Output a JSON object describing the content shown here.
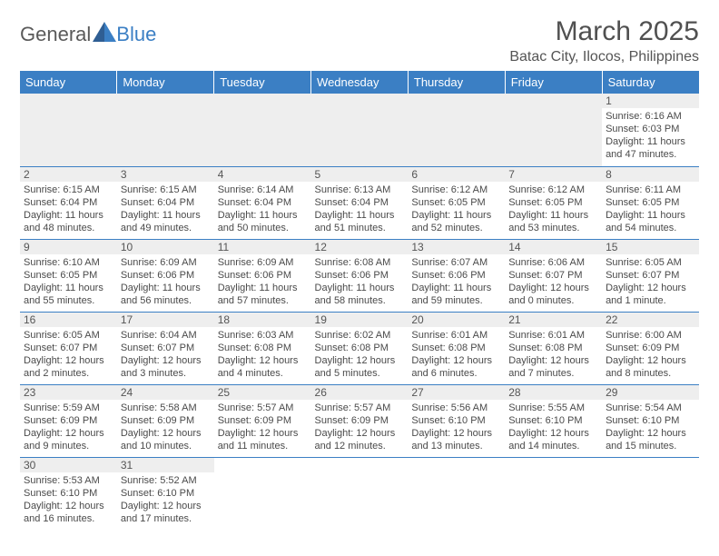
{
  "logo": {
    "text1": "General",
    "text2": "Blue",
    "triangle_color": "#3b7fc4"
  },
  "title": "March 2025",
  "location": "Batac City, Ilocos, Philippines",
  "colors": {
    "header_bg": "#3b7fc4",
    "header_text": "#ffffff",
    "daynum_bg": "#eeeeee",
    "border": "#3b7fc4",
    "body_text": "#4a4a4a"
  },
  "day_headers": [
    "Sunday",
    "Monday",
    "Tuesday",
    "Wednesday",
    "Thursday",
    "Friday",
    "Saturday"
  ],
  "weeks": [
    [
      null,
      null,
      null,
      null,
      null,
      null,
      {
        "num": "1",
        "sunrise": "Sunrise: 6:16 AM",
        "sunset": "Sunset: 6:03 PM",
        "daylight": "Daylight: 11 hours and 47 minutes."
      }
    ],
    [
      {
        "num": "2",
        "sunrise": "Sunrise: 6:15 AM",
        "sunset": "Sunset: 6:04 PM",
        "daylight": "Daylight: 11 hours and 48 minutes."
      },
      {
        "num": "3",
        "sunrise": "Sunrise: 6:15 AM",
        "sunset": "Sunset: 6:04 PM",
        "daylight": "Daylight: 11 hours and 49 minutes."
      },
      {
        "num": "4",
        "sunrise": "Sunrise: 6:14 AM",
        "sunset": "Sunset: 6:04 PM",
        "daylight": "Daylight: 11 hours and 50 minutes."
      },
      {
        "num": "5",
        "sunrise": "Sunrise: 6:13 AM",
        "sunset": "Sunset: 6:04 PM",
        "daylight": "Daylight: 11 hours and 51 minutes."
      },
      {
        "num": "6",
        "sunrise": "Sunrise: 6:12 AM",
        "sunset": "Sunset: 6:05 PM",
        "daylight": "Daylight: 11 hours and 52 minutes."
      },
      {
        "num": "7",
        "sunrise": "Sunrise: 6:12 AM",
        "sunset": "Sunset: 6:05 PM",
        "daylight": "Daylight: 11 hours and 53 minutes."
      },
      {
        "num": "8",
        "sunrise": "Sunrise: 6:11 AM",
        "sunset": "Sunset: 6:05 PM",
        "daylight": "Daylight: 11 hours and 54 minutes."
      }
    ],
    [
      {
        "num": "9",
        "sunrise": "Sunrise: 6:10 AM",
        "sunset": "Sunset: 6:05 PM",
        "daylight": "Daylight: 11 hours and 55 minutes."
      },
      {
        "num": "10",
        "sunrise": "Sunrise: 6:09 AM",
        "sunset": "Sunset: 6:06 PM",
        "daylight": "Daylight: 11 hours and 56 minutes."
      },
      {
        "num": "11",
        "sunrise": "Sunrise: 6:09 AM",
        "sunset": "Sunset: 6:06 PM",
        "daylight": "Daylight: 11 hours and 57 minutes."
      },
      {
        "num": "12",
        "sunrise": "Sunrise: 6:08 AM",
        "sunset": "Sunset: 6:06 PM",
        "daylight": "Daylight: 11 hours and 58 minutes."
      },
      {
        "num": "13",
        "sunrise": "Sunrise: 6:07 AM",
        "sunset": "Sunset: 6:06 PM",
        "daylight": "Daylight: 11 hours and 59 minutes."
      },
      {
        "num": "14",
        "sunrise": "Sunrise: 6:06 AM",
        "sunset": "Sunset: 6:07 PM",
        "daylight": "Daylight: 12 hours and 0 minutes."
      },
      {
        "num": "15",
        "sunrise": "Sunrise: 6:05 AM",
        "sunset": "Sunset: 6:07 PM",
        "daylight": "Daylight: 12 hours and 1 minute."
      }
    ],
    [
      {
        "num": "16",
        "sunrise": "Sunrise: 6:05 AM",
        "sunset": "Sunset: 6:07 PM",
        "daylight": "Daylight: 12 hours and 2 minutes."
      },
      {
        "num": "17",
        "sunrise": "Sunrise: 6:04 AM",
        "sunset": "Sunset: 6:07 PM",
        "daylight": "Daylight: 12 hours and 3 minutes."
      },
      {
        "num": "18",
        "sunrise": "Sunrise: 6:03 AM",
        "sunset": "Sunset: 6:08 PM",
        "daylight": "Daylight: 12 hours and 4 minutes."
      },
      {
        "num": "19",
        "sunrise": "Sunrise: 6:02 AM",
        "sunset": "Sunset: 6:08 PM",
        "daylight": "Daylight: 12 hours and 5 minutes."
      },
      {
        "num": "20",
        "sunrise": "Sunrise: 6:01 AM",
        "sunset": "Sunset: 6:08 PM",
        "daylight": "Daylight: 12 hours and 6 minutes."
      },
      {
        "num": "21",
        "sunrise": "Sunrise: 6:01 AM",
        "sunset": "Sunset: 6:08 PM",
        "daylight": "Daylight: 12 hours and 7 minutes."
      },
      {
        "num": "22",
        "sunrise": "Sunrise: 6:00 AM",
        "sunset": "Sunset: 6:09 PM",
        "daylight": "Daylight: 12 hours and 8 minutes."
      }
    ],
    [
      {
        "num": "23",
        "sunrise": "Sunrise: 5:59 AM",
        "sunset": "Sunset: 6:09 PM",
        "daylight": "Daylight: 12 hours and 9 minutes."
      },
      {
        "num": "24",
        "sunrise": "Sunrise: 5:58 AM",
        "sunset": "Sunset: 6:09 PM",
        "daylight": "Daylight: 12 hours and 10 minutes."
      },
      {
        "num": "25",
        "sunrise": "Sunrise: 5:57 AM",
        "sunset": "Sunset: 6:09 PM",
        "daylight": "Daylight: 12 hours and 11 minutes."
      },
      {
        "num": "26",
        "sunrise": "Sunrise: 5:57 AM",
        "sunset": "Sunset: 6:09 PM",
        "daylight": "Daylight: 12 hours and 12 minutes."
      },
      {
        "num": "27",
        "sunrise": "Sunrise: 5:56 AM",
        "sunset": "Sunset: 6:10 PM",
        "daylight": "Daylight: 12 hours and 13 minutes."
      },
      {
        "num": "28",
        "sunrise": "Sunrise: 5:55 AM",
        "sunset": "Sunset: 6:10 PM",
        "daylight": "Daylight: 12 hours and 14 minutes."
      },
      {
        "num": "29",
        "sunrise": "Sunrise: 5:54 AM",
        "sunset": "Sunset: 6:10 PM",
        "daylight": "Daylight: 12 hours and 15 minutes."
      }
    ],
    [
      {
        "num": "30",
        "sunrise": "Sunrise: 5:53 AM",
        "sunset": "Sunset: 6:10 PM",
        "daylight": "Daylight: 12 hours and 16 minutes."
      },
      {
        "num": "31",
        "sunrise": "Sunrise: 5:52 AM",
        "sunset": "Sunset: 6:10 PM",
        "daylight": "Daylight: 12 hours and 17 minutes."
      },
      null,
      null,
      null,
      null,
      null
    ]
  ]
}
